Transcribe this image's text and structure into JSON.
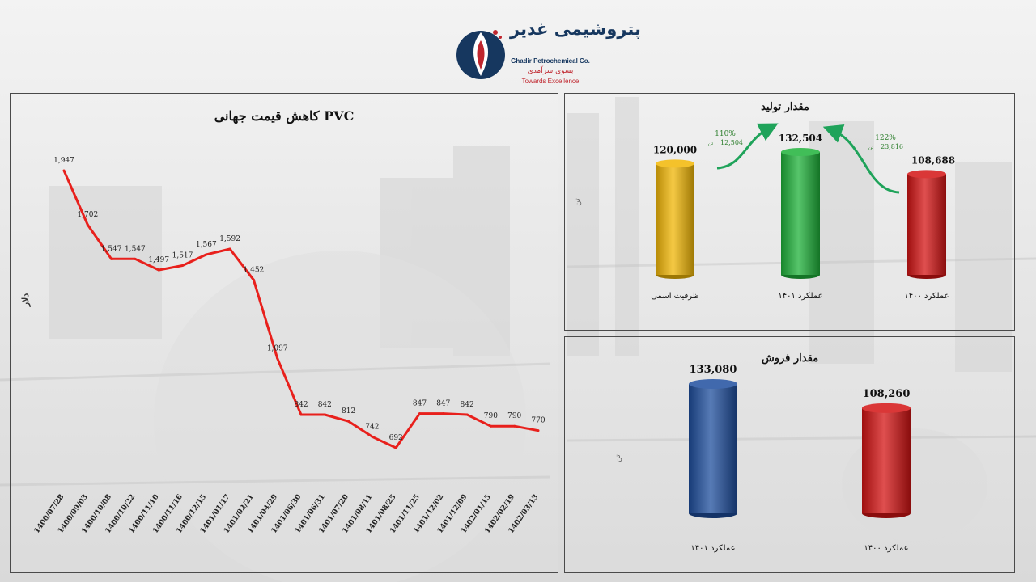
{
  "logo": {
    "brand_fa": "پتروشیمی غدیر",
    "brand_en": "Ghadir Petrochemical Co.",
    "slogan_fa": "بسوی سرآمدی",
    "slogan_en": "Towards Excellence"
  },
  "colors": {
    "line": "#e8201c",
    "yellow": "#f2b705",
    "green": "#1fb23a",
    "red": "#d41414",
    "blue": "#1f4f9e",
    "arrow": "#1fa35a"
  },
  "chart_data": [
    {
      "type": "line",
      "title": "کاهش قیمت جهانی PVC",
      "ylabel": "دلار",
      "categories": [
        "1400/07/28",
        "1400/09/03",
        "1400/10/08",
        "1400/10/22",
        "1400/11/10",
        "1400/11/16",
        "1400/12/15",
        "1401/01/17",
        "1401/02/21",
        "1401/04/29",
        "1401/06/30",
        "1401/06/31",
        "1401/07/20",
        "1401/08/11",
        "1401/08/25",
        "1401/11/25",
        "1401/12/02",
        "1401/12/09",
        "1402/01/15",
        "1402/02/19",
        "1402/03/13"
      ],
      "values": [
        1947,
        1702,
        1547,
        1547,
        1497,
        1517,
        1567,
        1592,
        1452,
        1097,
        842,
        842,
        812,
        742,
        692,
        847,
        847,
        842,
        790,
        790,
        770
      ],
      "value_labels": [
        "1,947",
        "1,702",
        "1,547",
        "1,547",
        "1,497",
        "1,517",
        "1,567",
        "1,592",
        "1,452",
        "1,097",
        "842",
        "842",
        "812",
        "742",
        "692",
        "847",
        "847",
        "842",
        "790",
        "790",
        "770"
      ],
      "ylim": [
        600,
        2000
      ]
    },
    {
      "type": "bar",
      "title": "مقدار تولید",
      "ylabel": "تن",
      "categories": [
        "ظرفیت اسمی",
        "عملکرد ۱۴۰۱",
        "عملکرد ۱۴۰۰"
      ],
      "values": [
        120000,
        132504,
        108688
      ],
      "value_labels": [
        "120,000",
        "132,504",
        "108,688"
      ],
      "colors": [
        "#f2b705",
        "#1fb23a",
        "#d41414"
      ],
      "annotations": [
        {
          "percent": "110%",
          "amount": "12,504",
          "unit": "تن"
        },
        {
          "percent": "122%",
          "amount": "23,816",
          "unit": "تن"
        }
      ]
    },
    {
      "type": "bar",
      "title": "مقدار فروش",
      "ylabel": "تن",
      "categories": [
        "عملکرد ۱۴۰۱",
        "عملکرد ۱۴۰۰"
      ],
      "values": [
        133080,
        108260
      ],
      "value_labels": [
        "133,080",
        "108,260"
      ],
      "colors": [
        "#1f4f9e",
        "#d41414"
      ]
    }
  ]
}
